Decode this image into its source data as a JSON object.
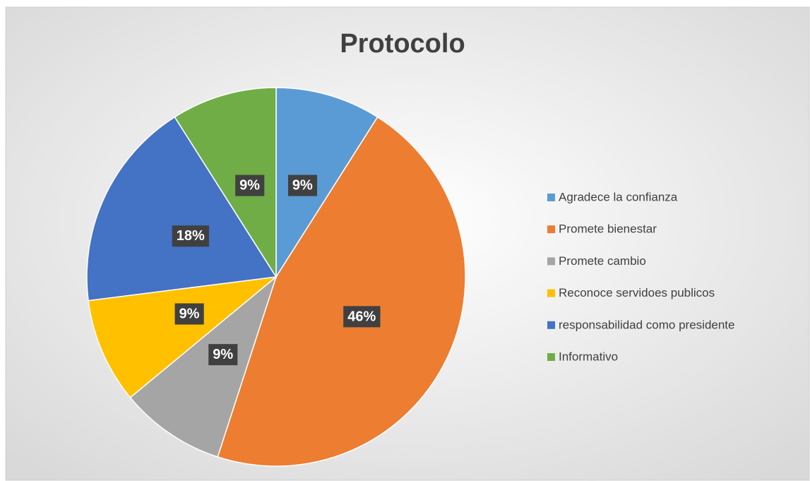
{
  "chart_data": {
    "type": "pie",
    "title": "Protocolo",
    "categories": [
      "Agradece la confianza",
      "Promete bienestar",
      "Promete cambio",
      "Reconoce servidoes publicos",
      "responsabilidad como presidente",
      "Informativo"
    ],
    "values": [
      9,
      46,
      9,
      9,
      18,
      9
    ],
    "value_labels": [
      "9%",
      "46%",
      "9%",
      "9%",
      "18%",
      "9%"
    ],
    "colors": [
      "#5B9BD5",
      "#ED7D31",
      "#A5A5A5",
      "#FFC000",
      "#4472C4",
      "#70AD47"
    ],
    "legend": "right"
  }
}
